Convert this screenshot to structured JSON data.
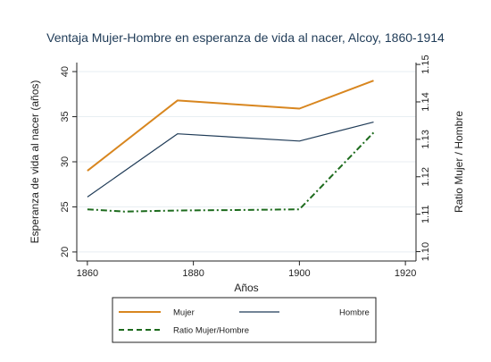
{
  "chart_data": {
    "type": "line",
    "title": "Ventaja Mujer-Hombre en esperanza de vida al nacer, Alcoy, 1860-1914",
    "xlabel": "Años",
    "ylabel_left": "Esperanza de vida al nacer (años)",
    "ylabel_right": "Ratio Mujer / Hombre",
    "xlim": [
      1858,
      1922
    ],
    "xticks": [
      1860,
      1880,
      1900,
      1920
    ],
    "ylim_left": [
      19,
      41
    ],
    "yticks_left": [
      20,
      25,
      30,
      35,
      40
    ],
    "ylim_right": [
      1.0975,
      1.1505
    ],
    "yticks_right": [
      1.1,
      1.11,
      1.12,
      1.13,
      1.14,
      1.15
    ],
    "grid": "horizontal",
    "legend_position": "bottom",
    "series": [
      {
        "name": "Mujer",
        "axis": "left",
        "color": "#d8861f",
        "style": "solid",
        "points": [
          [
            1860,
            29.0
          ],
          [
            1877,
            36.8
          ],
          [
            1900,
            35.9
          ],
          [
            1914,
            39.0
          ]
        ]
      },
      {
        "name": "Hombre",
        "axis": "left",
        "color": "#1f3b57",
        "style": "solid",
        "points": [
          [
            1860,
            26.1
          ],
          [
            1877,
            33.1
          ],
          [
            1900,
            32.3
          ],
          [
            1914,
            34.4
          ]
        ]
      },
      {
        "name": "Ratio Mujer/Hombre",
        "axis": "right",
        "color": "#1d6b1d",
        "style": "dashdot",
        "points": [
          [
            1860,
            1.1113
          ],
          [
            1867,
            1.1107
          ],
          [
            1877,
            1.111
          ],
          [
            1888,
            1.1111
          ],
          [
            1900,
            1.1113
          ],
          [
            1914,
            1.1318
          ]
        ]
      }
    ]
  }
}
